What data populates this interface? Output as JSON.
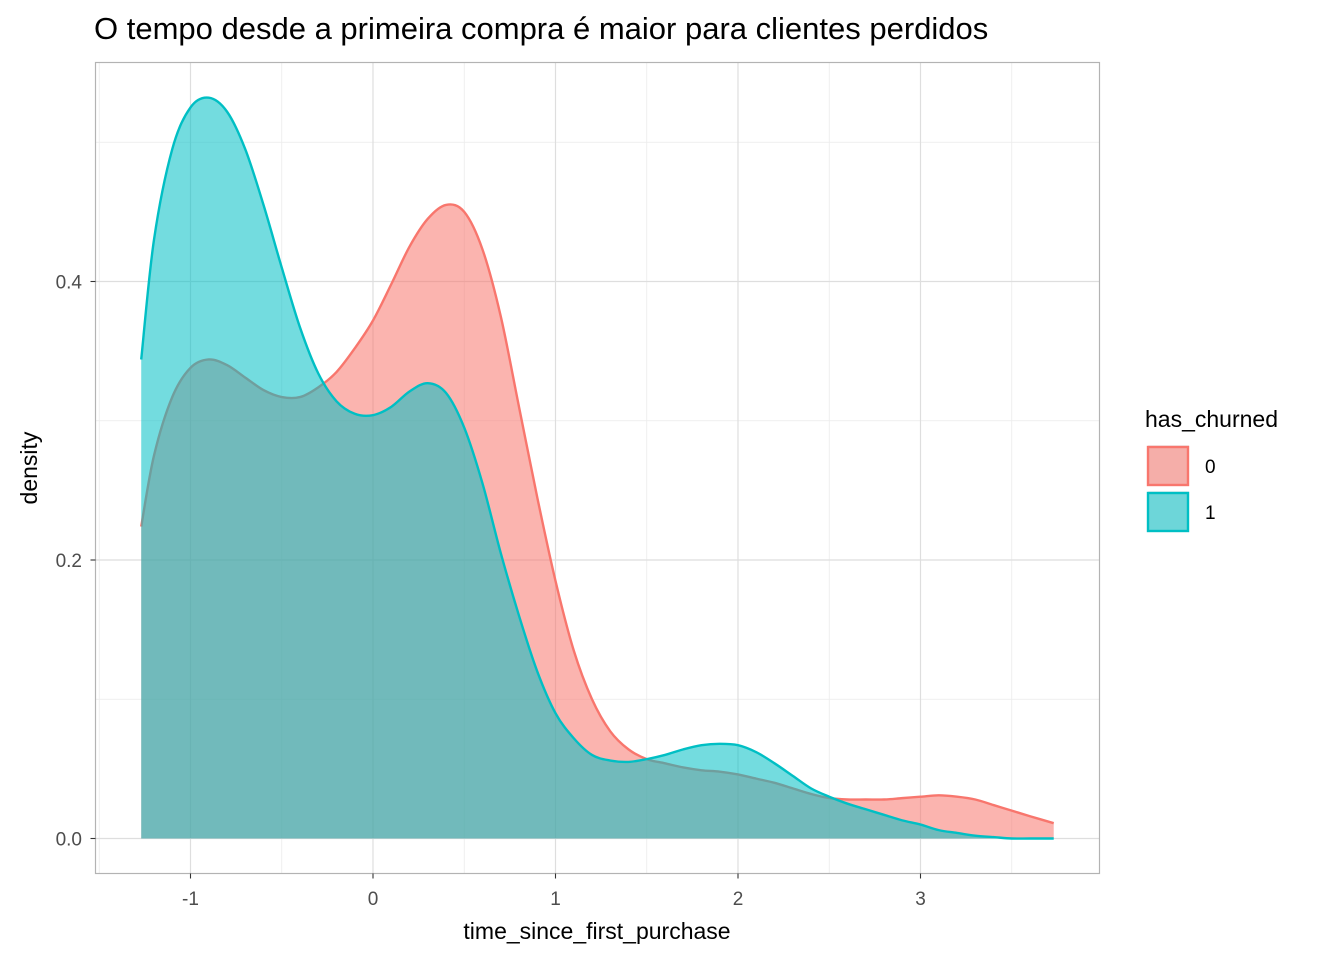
{
  "chart_data": {
    "type": "area",
    "title": "O tempo desde a primeira compra é maior para clientes perdidos",
    "xlabel": "time_since_first_purchase",
    "ylabel": "density",
    "xlim": [
      -1.5,
      4.0
    ],
    "ylim": [
      -0.012,
      0.556
    ],
    "x_ticks": [
      -1,
      0,
      1,
      2,
      3
    ],
    "x_tick_labels": [
      "-1",
      "0",
      "1",
      "2",
      "3"
    ],
    "y_ticks": [
      0.0,
      0.2,
      0.4
    ],
    "y_tick_labels": [
      "0.0",
      "0.2",
      "0.4"
    ],
    "grid": true,
    "legend": {
      "title": "has_churned",
      "position": "right"
    },
    "series": [
      {
        "name": "0",
        "color": "#F8766D",
        "points": [
          [
            -1.27,
            0.224
          ],
          [
            -1.2,
            0.275
          ],
          [
            -1.1,
            0.317
          ],
          [
            -1.0,
            0.338
          ],
          [
            -0.9,
            0.344
          ],
          [
            -0.8,
            0.34
          ],
          [
            -0.7,
            0.331
          ],
          [
            -0.6,
            0.322
          ],
          [
            -0.5,
            0.317
          ],
          [
            -0.4,
            0.317
          ],
          [
            -0.3,
            0.324
          ],
          [
            -0.2,
            0.335
          ],
          [
            -0.1,
            0.352
          ],
          [
            0.0,
            0.372
          ],
          [
            0.1,
            0.398
          ],
          [
            0.2,
            0.425
          ],
          [
            0.3,
            0.445
          ],
          [
            0.4,
            0.455
          ],
          [
            0.5,
            0.45
          ],
          [
            0.6,
            0.423
          ],
          [
            0.7,
            0.375
          ],
          [
            0.8,
            0.31
          ],
          [
            0.9,
            0.245
          ],
          [
            1.0,
            0.185
          ],
          [
            1.1,
            0.135
          ],
          [
            1.2,
            0.1
          ],
          [
            1.3,
            0.077
          ],
          [
            1.4,
            0.064
          ],
          [
            1.5,
            0.057
          ],
          [
            1.6,
            0.054
          ],
          [
            1.7,
            0.051
          ],
          [
            1.8,
            0.049
          ],
          [
            1.9,
            0.048
          ],
          [
            2.0,
            0.046
          ],
          [
            2.1,
            0.043
          ],
          [
            2.2,
            0.04
          ],
          [
            2.3,
            0.036
          ],
          [
            2.4,
            0.032
          ],
          [
            2.5,
            0.029
          ],
          [
            2.6,
            0.028
          ],
          [
            2.7,
            0.028
          ],
          [
            2.8,
            0.028
          ],
          [
            2.9,
            0.029
          ],
          [
            3.0,
            0.03
          ],
          [
            3.1,
            0.031
          ],
          [
            3.2,
            0.03
          ],
          [
            3.3,
            0.028
          ],
          [
            3.4,
            0.024
          ],
          [
            3.5,
            0.02
          ],
          [
            3.6,
            0.016
          ],
          [
            3.73,
            0.011
          ]
        ]
      },
      {
        "name": "1",
        "color": "#00BFC4",
        "points": [
          [
            -1.27,
            0.344
          ],
          [
            -1.2,
            0.43
          ],
          [
            -1.1,
            0.495
          ],
          [
            -1.0,
            0.525
          ],
          [
            -0.9,
            0.532
          ],
          [
            -0.8,
            0.522
          ],
          [
            -0.7,
            0.495
          ],
          [
            -0.6,
            0.455
          ],
          [
            -0.5,
            0.41
          ],
          [
            -0.4,
            0.367
          ],
          [
            -0.3,
            0.334
          ],
          [
            -0.2,
            0.314
          ],
          [
            -0.1,
            0.305
          ],
          [
            0.0,
            0.304
          ],
          [
            0.1,
            0.31
          ],
          [
            0.2,
            0.321
          ],
          [
            0.3,
            0.327
          ],
          [
            0.4,
            0.32
          ],
          [
            0.5,
            0.295
          ],
          [
            0.6,
            0.255
          ],
          [
            0.7,
            0.205
          ],
          [
            0.8,
            0.16
          ],
          [
            0.9,
            0.12
          ],
          [
            1.0,
            0.09
          ],
          [
            1.1,
            0.072
          ],
          [
            1.2,
            0.06
          ],
          [
            1.3,
            0.056
          ],
          [
            1.4,
            0.055
          ],
          [
            1.5,
            0.057
          ],
          [
            1.6,
            0.06
          ],
          [
            1.7,
            0.064
          ],
          [
            1.8,
            0.067
          ],
          [
            1.9,
            0.068
          ],
          [
            2.0,
            0.067
          ],
          [
            2.1,
            0.062
          ],
          [
            2.2,
            0.054
          ],
          [
            2.3,
            0.045
          ],
          [
            2.4,
            0.036
          ],
          [
            2.5,
            0.03
          ],
          [
            2.6,
            0.025
          ],
          [
            2.7,
            0.021
          ],
          [
            2.8,
            0.017
          ],
          [
            2.9,
            0.013
          ],
          [
            3.0,
            0.01
          ],
          [
            3.1,
            0.006
          ],
          [
            3.2,
            0.004
          ],
          [
            3.3,
            0.002
          ],
          [
            3.4,
            0.001
          ],
          [
            3.5,
            0.0
          ],
          [
            3.6,
            0.0
          ],
          [
            3.73,
            0.0
          ]
        ]
      }
    ]
  }
}
